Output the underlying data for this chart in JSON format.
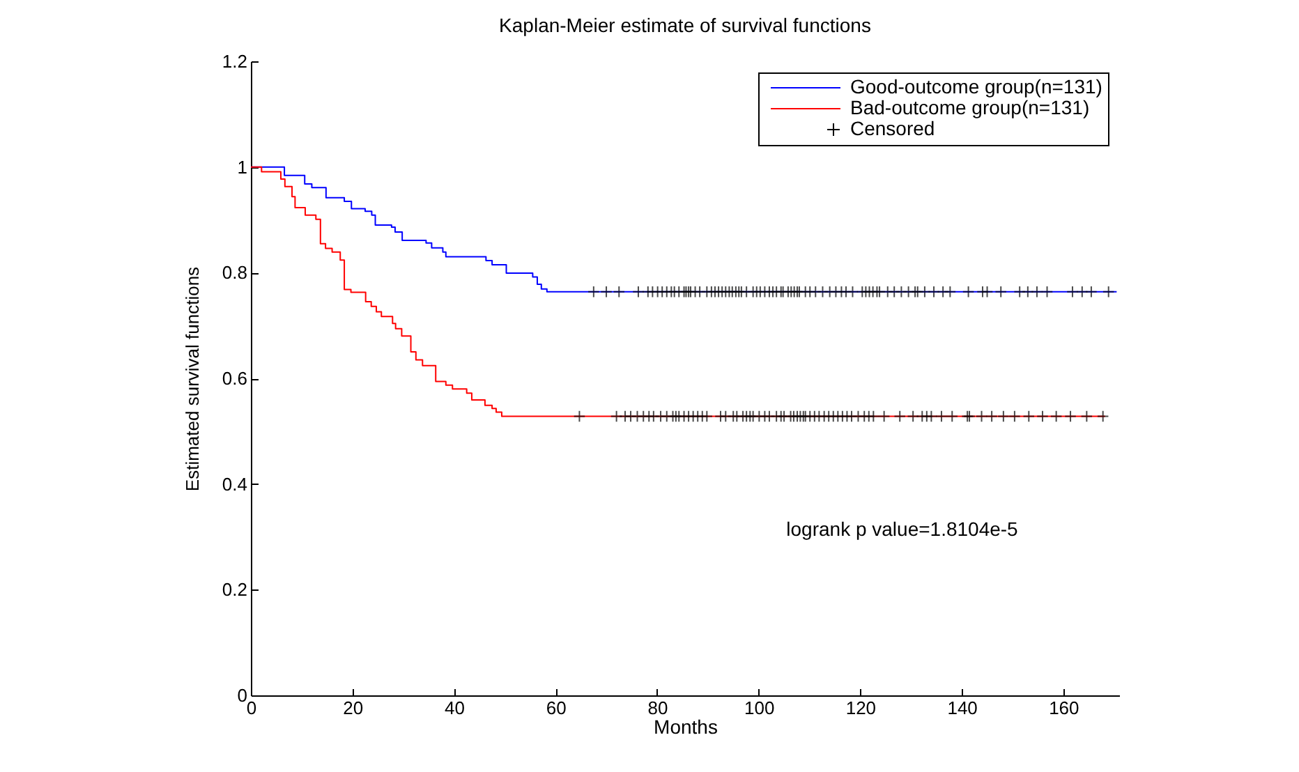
{
  "chart_data": {
    "type": "step",
    "title": "Kaplan-Meier estimate of survival functions",
    "xlabel": "Months",
    "ylabel": "Estimated survival functions",
    "xlim": [
      0,
      171
    ],
    "xticks": [
      0,
      20,
      40,
      60,
      80,
      100,
      120,
      140,
      160
    ],
    "ylim": [
      0,
      1.2
    ],
    "yticks": [
      0,
      0.2,
      0.4,
      0.6,
      0.8,
      1,
      1.2
    ],
    "legend": "top right",
    "grid": false,
    "annotations": [
      "logrank p value=1.8104e-5"
    ],
    "series": [
      {
        "name": "Good-outcome group(n=131)",
        "color": "#0000ff",
        "marker": "none",
        "x": [
          0,
          6.6,
          10.6,
          12.0,
          14.8,
          18.4,
          19.8,
          22.5,
          23.8,
          24.5,
          27.7,
          28.4,
          29.8,
          34.5,
          35.6,
          37.8,
          38.4,
          46.3,
          47.5,
          50.3,
          55.5,
          56.4,
          57.2,
          58.3,
          170.5
        ],
        "values": [
          1,
          0.984,
          0.968,
          0.961,
          0.942,
          0.935,
          0.921,
          0.916,
          0.909,
          0.89,
          0.886,
          0.877,
          0.861,
          0.856,
          0.847,
          0.839,
          0.83,
          0.823,
          0.815,
          0.799,
          0.792,
          0.778,
          0.769,
          0.764,
          0.764
        ]
      },
      {
        "name": "Bad-outcome group(n=131)",
        "color": "#ff0000",
        "marker": "none",
        "x": [
          0,
          2.1,
          5.9,
          6.7,
          8.1,
          8.7,
          10.7,
          12.8,
          13.7,
          14.7,
          16.0,
          17.6,
          18.4,
          19.7,
          22.6,
          23.7,
          24.7,
          25.7,
          27.9,
          28.5,
          29.7,
          31.5,
          32.5,
          33.8,
          36.4,
          38.4,
          39.7,
          42.5,
          43.5,
          46.1,
          47.5,
          48.3,
          49.4,
          168.2
        ],
        "values": [
          1,
          0.991,
          0.977,
          0.963,
          0.944,
          0.923,
          0.909,
          0.901,
          0.855,
          0.846,
          0.839,
          0.824,
          0.768,
          0.763,
          0.745,
          0.736,
          0.726,
          0.717,
          0.704,
          0.694,
          0.68,
          0.65,
          0.635,
          0.624,
          0.594,
          0.587,
          0.58,
          0.572,
          0.559,
          0.549,
          0.543,
          0.536,
          0.528,
          0.528
        ]
      },
      {
        "name": "Censored",
        "type": "scatter",
        "color": "#000000",
        "marker": "cross",
        "x": [
          67.5,
          70.0,
          72.5,
          76.3,
          78.2,
          79.1,
          80.1,
          81.0,
          81.9,
          82.8,
          83.4,
          84.3,
          85.3,
          85.7,
          86.2,
          86.6,
          87.5,
          88.4,
          89.8,
          90.7,
          91.4,
          92.1,
          92.8,
          93.5,
          94.2,
          94.8,
          95.5,
          96.1,
          96.6,
          97.6,
          98.9,
          99.6,
          100.3,
          101.2,
          102.1,
          102.8,
          103.5,
          104.4,
          104.8,
          105.8,
          106.4,
          107.0,
          107.6,
          108.0,
          109.2,
          110.1,
          111.2,
          112.6,
          114.0,
          115.2,
          116.3,
          117.2,
          118.5,
          120.4,
          121.1,
          121.8,
          122.5,
          123.3,
          123.8,
          125.4,
          126.7,
          128.1,
          129.5,
          130.8,
          131.3,
          132.7,
          134.5,
          136.3,
          137.7,
          141.3,
          144.1,
          145.0,
          147.7,
          151.4,
          153.0,
          154.8,
          156.8,
          161.8,
          163.7,
          165.5,
          168.9,
          64.7,
          72.0,
          73.7,
          74.8,
          76.1,
          77.3,
          78.4,
          79.3,
          80.7,
          81.9,
          83.1,
          83.7,
          84.3,
          85.3,
          86.2,
          87.1,
          88.0,
          88.9,
          89.8,
          92.5,
          93.5,
          95.0,
          95.7,
          96.9,
          97.6,
          98.3,
          98.9,
          100.1,
          101.2,
          102.1,
          103.5,
          104.4,
          105.0,
          106.3,
          106.9,
          107.6,
          108.2,
          108.8,
          109.2,
          110.1,
          111.0,
          111.9,
          112.9,
          113.8,
          114.7,
          115.6,
          116.5,
          117.4,
          118.3,
          119.6,
          120.8,
          121.7,
          122.6,
          124.7,
          127.8,
          130.4,
          132.2,
          133.1,
          134.0,
          136.0,
          138.1,
          141.1,
          141.5,
          143.9,
          145.9,
          148.2,
          150.4,
          153.2,
          155.9,
          158.6,
          161.4,
          164.6,
          167.8
        ],
        "values": [
          0.764,
          0.764,
          0.764,
          0.764,
          0.764,
          0.764,
          0.764,
          0.764,
          0.764,
          0.764,
          0.764,
          0.764,
          0.764,
          0.764,
          0.764,
          0.764,
          0.764,
          0.764,
          0.764,
          0.764,
          0.764,
          0.764,
          0.764,
          0.764,
          0.764,
          0.764,
          0.764,
          0.764,
          0.764,
          0.764,
          0.764,
          0.764,
          0.764,
          0.764,
          0.764,
          0.764,
          0.764,
          0.764,
          0.764,
          0.764,
          0.764,
          0.764,
          0.764,
          0.764,
          0.764,
          0.764,
          0.764,
          0.764,
          0.764,
          0.764,
          0.764,
          0.764,
          0.764,
          0.764,
          0.764,
          0.764,
          0.764,
          0.764,
          0.764,
          0.764,
          0.764,
          0.764,
          0.764,
          0.764,
          0.764,
          0.764,
          0.764,
          0.764,
          0.764,
          0.764,
          0.764,
          0.764,
          0.764,
          0.764,
          0.764,
          0.764,
          0.764,
          0.764,
          0.764,
          0.764,
          0.764,
          0.528,
          0.528,
          0.528,
          0.528,
          0.528,
          0.528,
          0.528,
          0.528,
          0.528,
          0.528,
          0.528,
          0.528,
          0.528,
          0.528,
          0.528,
          0.528,
          0.528,
          0.528,
          0.528,
          0.528,
          0.528,
          0.528,
          0.528,
          0.528,
          0.528,
          0.528,
          0.528,
          0.528,
          0.528,
          0.528,
          0.528,
          0.528,
          0.528,
          0.528,
          0.528,
          0.528,
          0.528,
          0.528,
          0.528,
          0.528,
          0.528,
          0.528,
          0.528,
          0.528,
          0.528,
          0.528,
          0.528,
          0.528,
          0.528,
          0.528,
          0.528,
          0.528,
          0.528,
          0.528,
          0.528,
          0.528,
          0.528,
          0.528,
          0.528,
          0.528,
          0.528,
          0.528,
          0.528,
          0.528,
          0.528,
          0.528,
          0.528,
          0.528,
          0.528,
          0.528,
          0.528,
          0.528,
          0.528
        ]
      }
    ]
  }
}
